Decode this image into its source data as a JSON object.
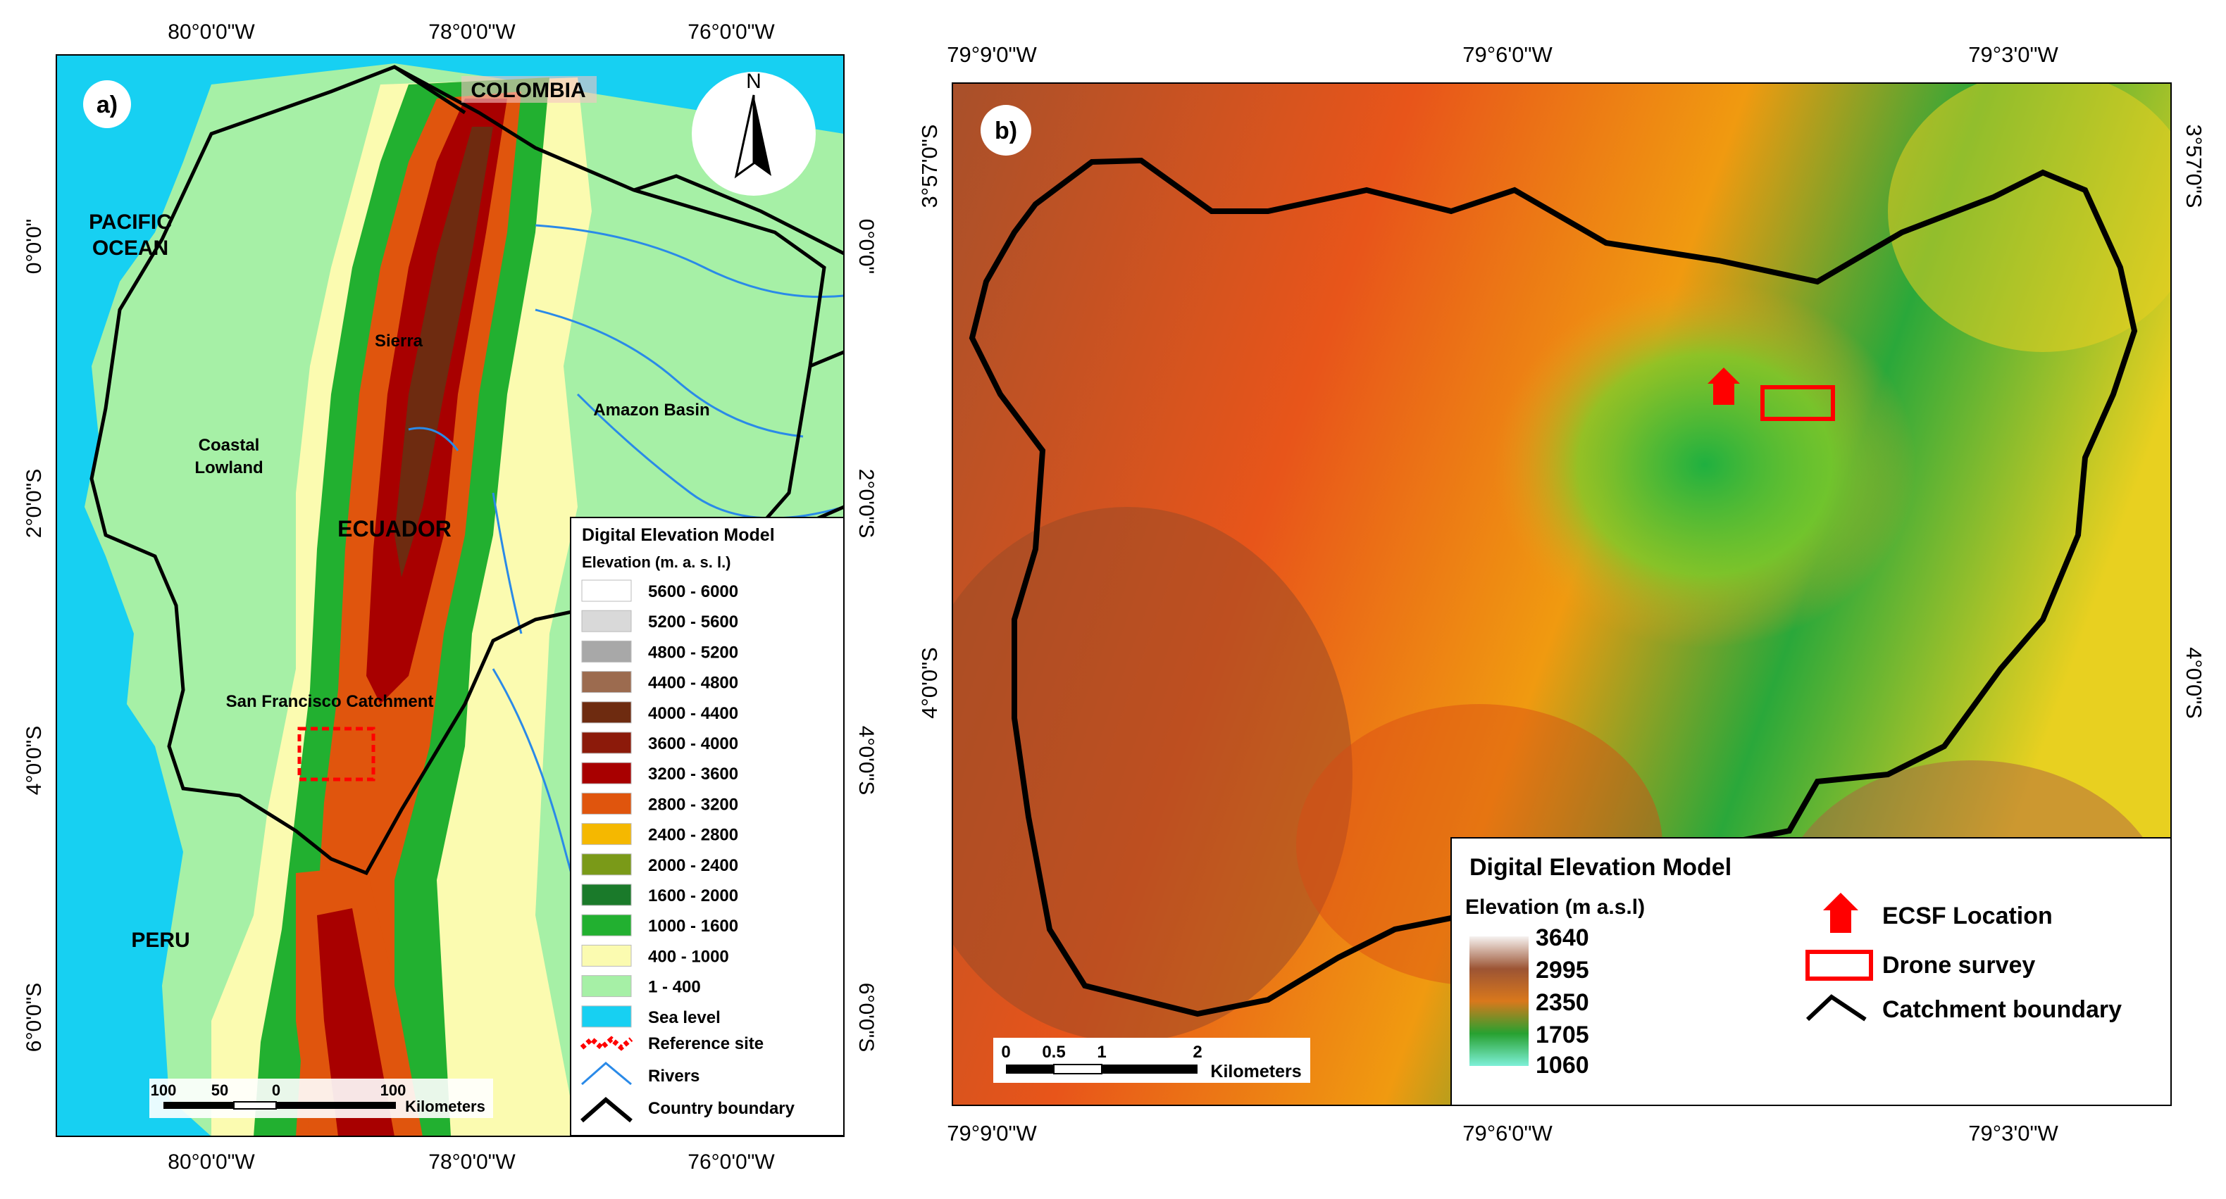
{
  "panel_a": {
    "label": "a)",
    "top_lon_labels": [
      "80°0'0\"W",
      "78°0'0\"W",
      "76°0'0\"W"
    ],
    "bottom_lon_labels": [
      "80°0'0\"W",
      "78°0'0\"W",
      "76°0'0\"W"
    ],
    "left_lat_labels": [
      "0°0'0\"",
      "2°0'0\"S",
      "4°0'0\"S",
      "6°0'0\"S"
    ],
    "right_lat_labels": [
      "0°0'0\"",
      "2°0'0\"S",
      "4°0'0\"S",
      "6°0'0\"S"
    ],
    "place_labels": {
      "colombia": "COLOMBIA",
      "pacific_line1": "PACIFIC",
      "pacific_line2": "OCEAN",
      "sierra": "Sierra",
      "amazon": "Amazon Basin",
      "coastal_line1": "Coastal",
      "coastal_line2": "Lowland",
      "ecuador": "ECUADOR",
      "san_francisco": "San Francisco Catchment",
      "peru": "PERU"
    },
    "north_arrow": "N",
    "scalebar": {
      "ticks": [
        "100",
        "50",
        "0",
        "100"
      ],
      "unit": "Kilometers"
    },
    "legend": {
      "title": "Digital Elevation Model",
      "subtitle": "Elevation (m. a. s. l.)",
      "classes": [
        {
          "label": "5600 - 6000",
          "color": "#ffffff"
        },
        {
          "label": "5200 - 5600",
          "color": "#d9d9d9"
        },
        {
          "label": "4800 - 5200",
          "color": "#a8a8a8"
        },
        {
          "label": "4400 - 4800",
          "color": "#9c6b4f"
        },
        {
          "label": "4000 - 4400",
          "color": "#6e2b10"
        },
        {
          "label": "3600 - 4000",
          "color": "#8c1a0a"
        },
        {
          "label": "3200 - 3600",
          "color": "#a80000"
        },
        {
          "label": "2800 - 3200",
          "color": "#e0550d"
        },
        {
          "label": "2400 - 2800",
          "color": "#f5b800"
        },
        {
          "label": "2000 - 2400",
          "color": "#7a9a18"
        },
        {
          "label": "1600 - 2000",
          "color": "#1a7a2a"
        },
        {
          "label": "1000 - 1600",
          "color": "#22b030"
        },
        {
          "label": "400 - 1000",
          "color": "#fbfbb0"
        },
        {
          "label": "1 - 400",
          "color": "#a6f0a6"
        },
        {
          "label": "Sea level",
          "color": "#17d0f2"
        }
      ],
      "reference_site": "Reference site",
      "rivers": "Rivers",
      "country_boundary": "Country boundary"
    }
  },
  "panel_b": {
    "label": "b)",
    "top_lon_labels": [
      "79°9'0\"W",
      "79°6'0\"W",
      "79°3'0\"W"
    ],
    "bottom_lon_labels": [
      "79°9'0\"W",
      "79°6'0\"W",
      "79°3'0\"W"
    ],
    "left_lat_labels": [
      "3°57'0\"S",
      "4°0'0\"S"
    ],
    "right_lat_labels": [
      "3°57'0\"S",
      "4°0'0\"S"
    ],
    "scalebar": {
      "ticks": [
        "0",
        "0.5",
        "1",
        "2"
      ],
      "unit": "Kilometers"
    },
    "legend": {
      "title": "Digital Elevation Model",
      "subtitle": "Elevation (m a.s.l)",
      "ramp_labels": [
        "3640",
        "2995",
        "2350",
        "1705",
        "1060"
      ],
      "ramp_colors": [
        "#f6f2f0",
        "#9c5434",
        "#d9781c",
        "#27a130",
        "#7ef0d8"
      ],
      "ecsf": "ECSF Location",
      "drone": "Drone survey",
      "catchment": "Catchment boundary"
    }
  },
  "colors": {
    "sea": "#17d0f2",
    "marker_red": "#ff0000",
    "river_blue": "#2a8ae8",
    "boundary": "#000000"
  }
}
